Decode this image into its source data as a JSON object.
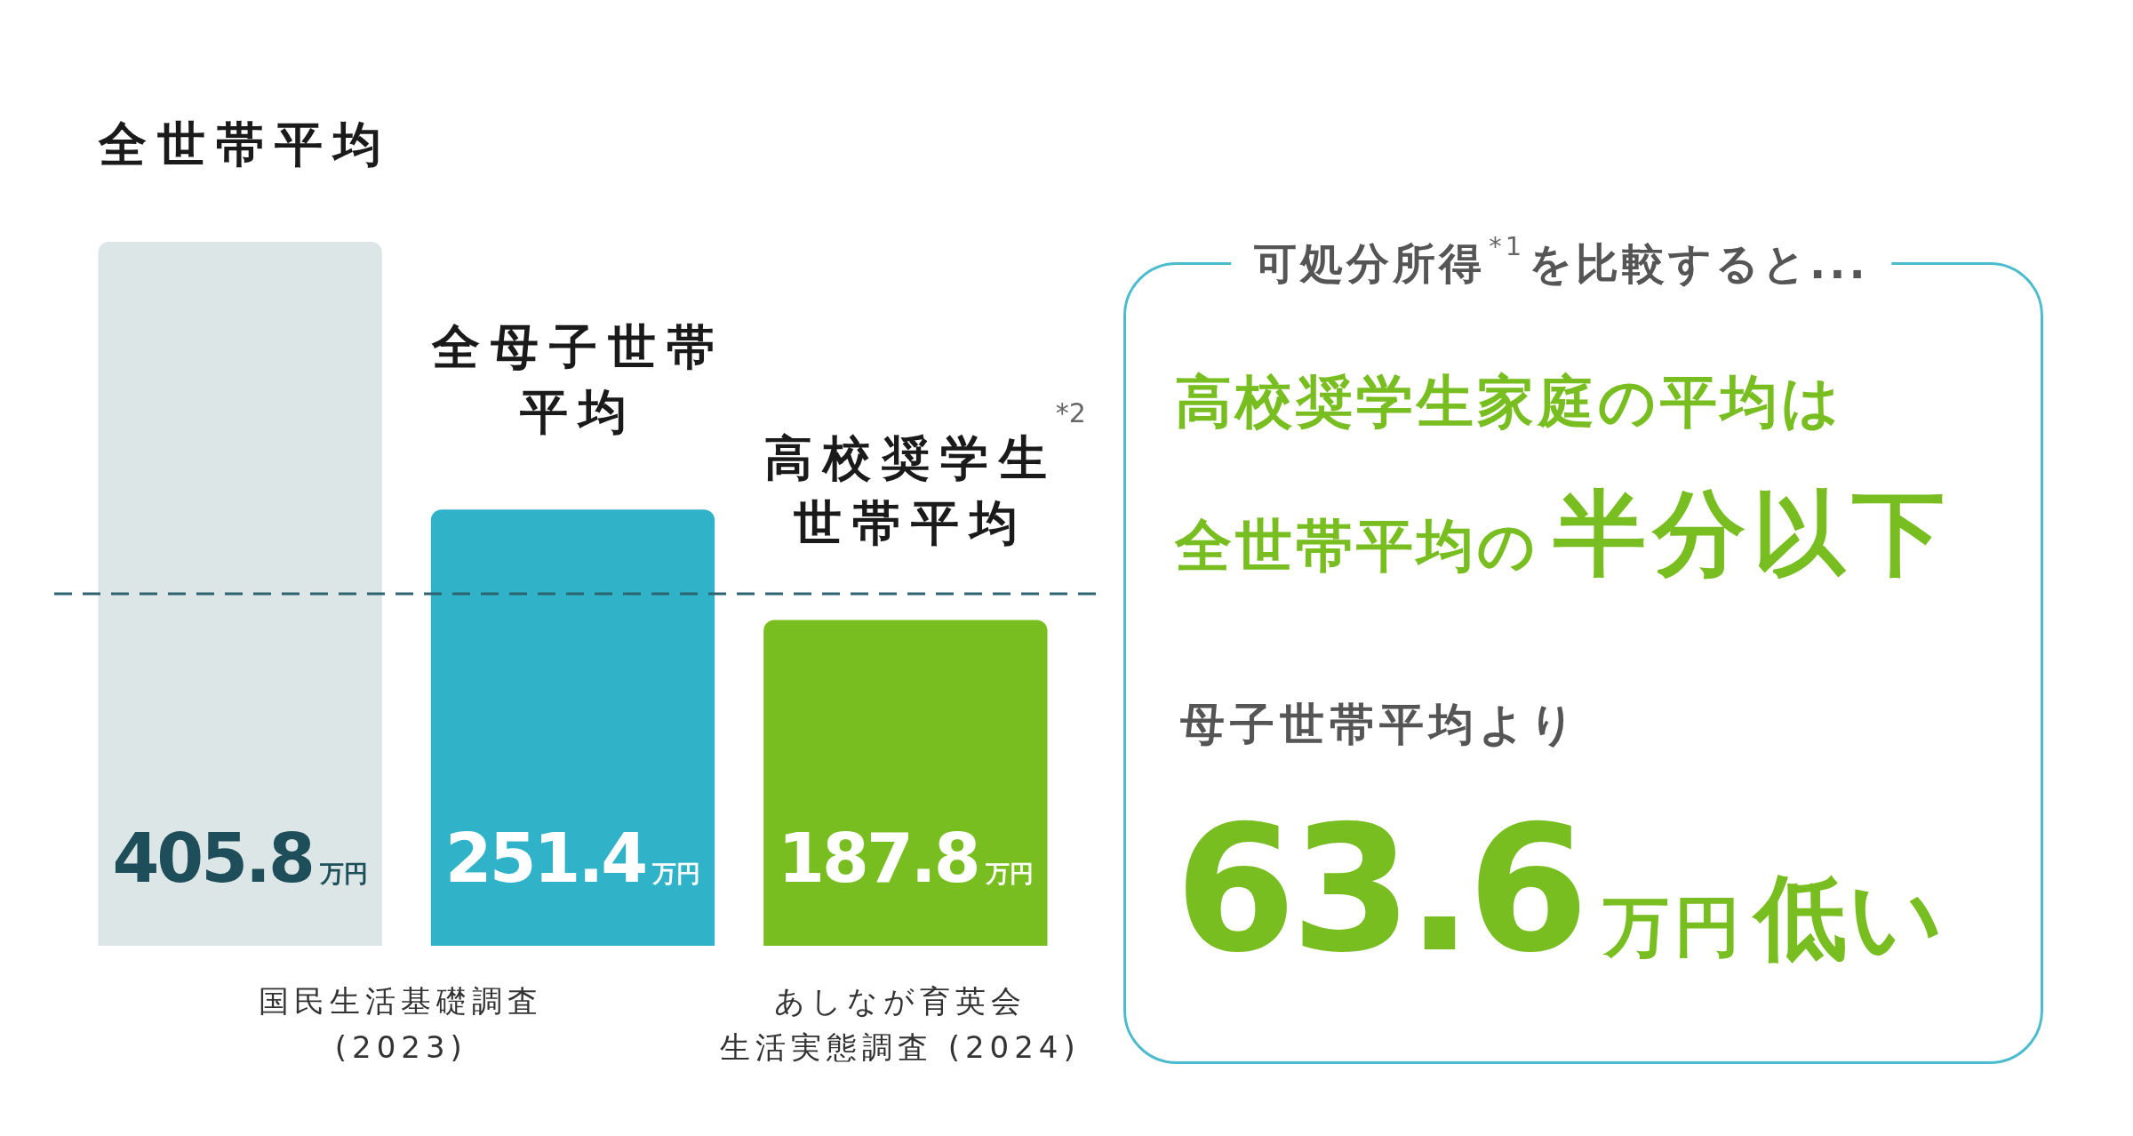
{
  "chart_data": [
    {
      "type": "bar",
      "categories": [
        "全世帯平均",
        "全母子世帯平均",
        "高校奨学生世帯平均$^{*2}$"
      ],
      "values": [
        405.8,
        251.4,
        187.8
      ],
      "colors": [
        "#dde6e6",
        "#30b3c8",
        "#78be20"
      ],
      "value_labels": [
        "405.8万円",
        "251.4万円",
        "187.8万円"
      ],
      "ref_lines": [
        {
          "axis": "y",
          "value": 202.9,
          "color": "#2e6470",
          "line_style": "dashed"
        }
      ],
      "annotations": [
        "国民生活基礎調査 (2023)",
        "あしなが育英会生活実態調査 (2024)"
      ]
    },
    {
      "type": "other",
      "title": "可処分所得$^{*1}$を比較すると...",
      "annotations": [
        "高校奨学生家庭の平均は",
        "全世帯平均の",
        "半分以下",
        "母子世帯平均より",
        "63.6",
        "万円",
        "低い"
      ]
    }
  ]
}
